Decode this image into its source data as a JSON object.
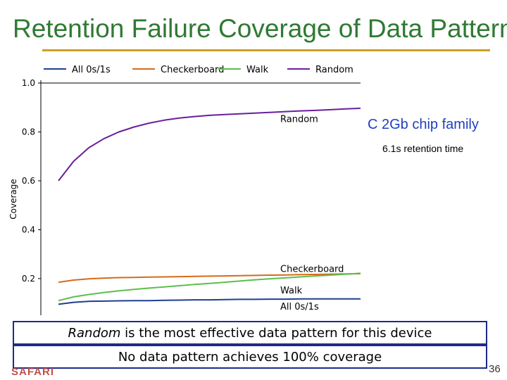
{
  "slide": {
    "title": "Retention Failure Coverage of Data Patterns",
    "device_label": "C 2Gb chip family",
    "retention_label": "6.1s retention time",
    "callout_1": {
      "emphasis": "Random",
      "rest": " is the most effective data pattern for this device"
    },
    "callout_2": "No data pattern achieves 100% coverage",
    "footer_logo": "SAFARI",
    "page_number": "36",
    "title_color": "#2f7a33",
    "rule_color": "#c9a227"
  },
  "chart_data": {
    "type": "line",
    "title": "",
    "xlabel": "",
    "ylabel": "Coverage",
    "ylim": [
      0.05,
      1.0
    ],
    "y_ticks": [
      0.2,
      0.4,
      0.6,
      0.8,
      1.0
    ],
    "y_tick_labels": [
      "0.2",
      "0.4",
      "0.6",
      "0.8",
      "1.0"
    ],
    "x_ticks_visible": false,
    "grid": false,
    "legend_position": "top",
    "series": [
      {
        "name": "All 0s/1s",
        "color": "#1f3f8f",
        "inline_label": "All 0s/1s",
        "values": [
          0.095,
          0.103,
          0.107,
          0.108,
          0.109,
          0.11,
          0.11,
          0.111,
          0.112,
          0.113,
          0.113,
          0.114,
          0.115,
          0.115,
          0.116,
          0.116,
          0.117,
          0.117,
          0.117,
          0.117,
          0.117
        ]
      },
      {
        "name": "Checkerboard",
        "color": "#d66b1a",
        "inline_label": "Checkerboard",
        "values": [
          0.185,
          0.194,
          0.199,
          0.202,
          0.204,
          0.205,
          0.206,
          0.207,
          0.208,
          0.209,
          0.21,
          0.211,
          0.212,
          0.213,
          0.214,
          0.215,
          0.216,
          0.217,
          0.218,
          0.219,
          0.22
        ]
      },
      {
        "name": "Walk",
        "color": "#5bbf4a",
        "inline_label": "Walk",
        "values": [
          0.11,
          0.125,
          0.135,
          0.143,
          0.15,
          0.156,
          0.161,
          0.166,
          0.171,
          0.176,
          0.18,
          0.185,
          0.19,
          0.195,
          0.199,
          0.203,
          0.207,
          0.211,
          0.214,
          0.218,
          0.222
        ]
      },
      {
        "name": "Random",
        "color": "#6a1f9a",
        "inline_label": "Random",
        "values": [
          0.6,
          0.68,
          0.735,
          0.772,
          0.8,
          0.82,
          0.836,
          0.848,
          0.857,
          0.863,
          0.868,
          0.871,
          0.874,
          0.877,
          0.88,
          0.883,
          0.886,
          0.888,
          0.891,
          0.894,
          0.897
        ]
      }
    ]
  }
}
